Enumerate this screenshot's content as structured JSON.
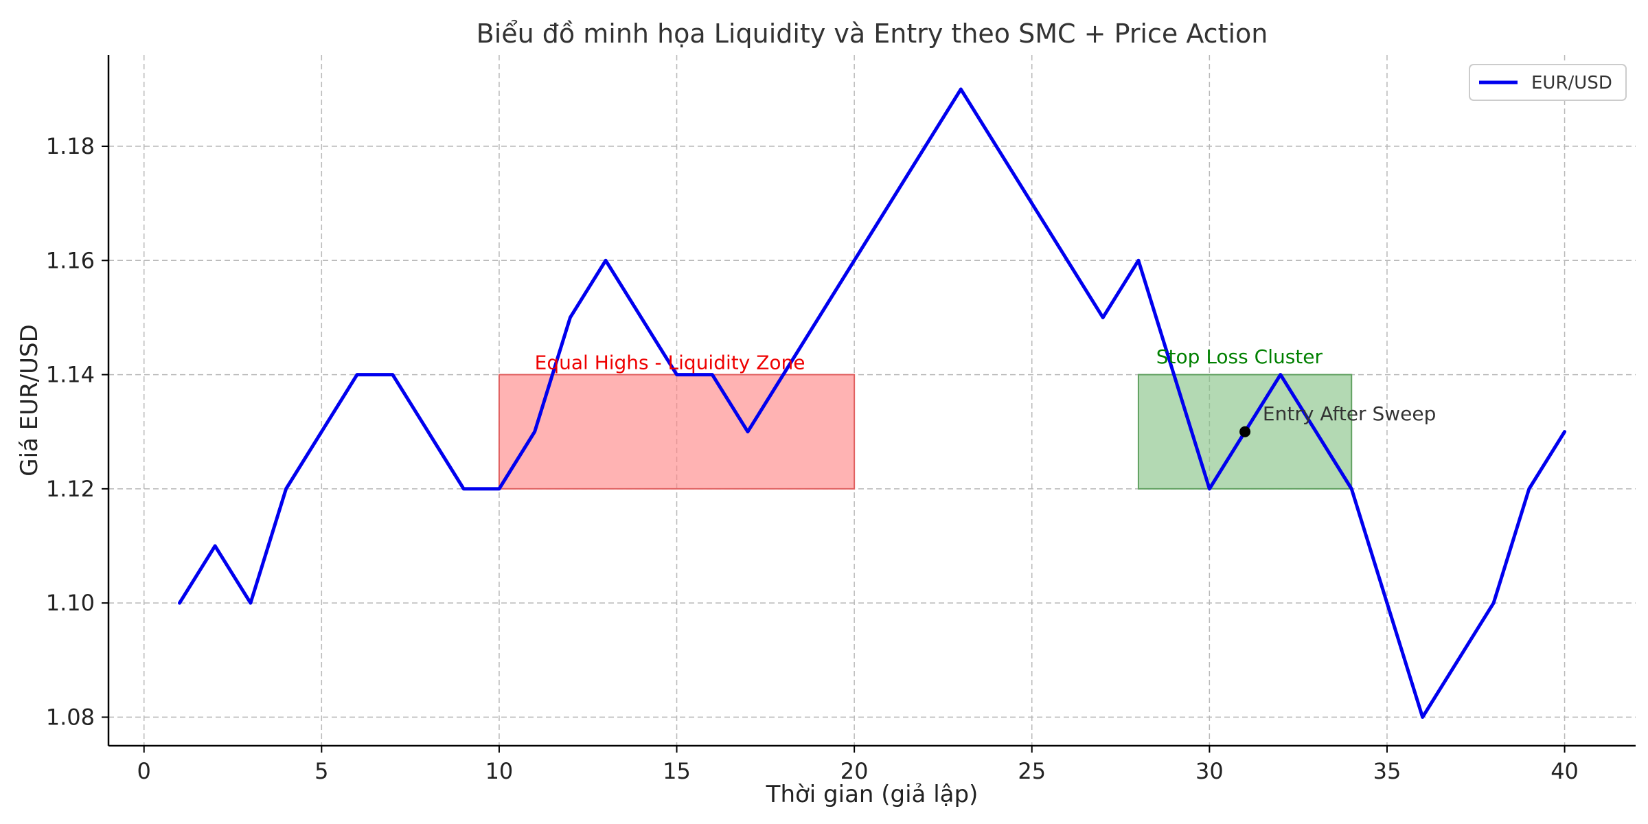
{
  "chart_data": {
    "type": "line",
    "title": "Biểu đồ minh họa Liquidity và Entry theo SMC + Price Action",
    "xlabel": "Thời gian (giả lập)",
    "ylabel": "Giá EUR/USD",
    "xlim": [
      -1,
      42
    ],
    "ylim": [
      1.075,
      1.196
    ],
    "xticks": [
      0,
      5,
      10,
      15,
      20,
      25,
      30,
      35,
      40
    ],
    "yticks": [
      1.08,
      1.1,
      1.12,
      1.14,
      1.16,
      1.18
    ],
    "xtick_labels": [
      "0",
      "5",
      "10",
      "15",
      "20",
      "25",
      "30",
      "35",
      "40"
    ],
    "ytick_labels": [
      "1.08",
      "1.10",
      "1.12",
      "1.14",
      "1.16",
      "1.18"
    ],
    "grid": true,
    "legend": {
      "position": "top-right",
      "entries": [
        "EUR/USD"
      ]
    },
    "series": [
      {
        "name": "EUR/USD",
        "color": "#0000ee",
        "x": [
          1,
          2,
          3,
          4,
          5,
          6,
          7,
          8,
          9,
          10,
          11,
          12,
          13,
          14,
          15,
          16,
          17,
          18,
          19,
          20,
          21,
          22,
          23,
          24,
          25,
          26,
          27,
          28,
          29,
          30,
          31,
          32,
          33,
          34,
          35,
          36,
          37,
          38,
          39,
          40
        ],
        "values": [
          1.1,
          1.11,
          1.1,
          1.12,
          1.13,
          1.14,
          1.14,
          1.13,
          1.12,
          1.12,
          1.13,
          1.15,
          1.16,
          1.15,
          1.14,
          1.14,
          1.13,
          1.14,
          1.15,
          1.16,
          1.17,
          1.18,
          1.19,
          1.18,
          1.17,
          1.16,
          1.15,
          1.16,
          1.14,
          1.12,
          1.13,
          1.14,
          1.13,
          1.12,
          1.1,
          1.08,
          1.09,
          1.1,
          1.12,
          1.13
        ]
      }
    ],
    "zones": [
      {
        "label": "Equal Highs - Liquidity Zone",
        "x_range": [
          10,
          20
        ],
        "y_range": [
          1.12,
          1.14
        ],
        "fill": "#ff8080",
        "edge": "#e06060",
        "text_color": "#ee0000",
        "label_x": 11,
        "label_y": 1.141
      },
      {
        "label": "Stop Loss Cluster",
        "x_range": [
          28,
          34
        ],
        "y_range": [
          1.12,
          1.14
        ],
        "fill": "#80c080",
        "edge": "#60a060",
        "text_color": "#008000",
        "label_x": 28.5,
        "label_y": 1.142
      }
    ],
    "points": [
      {
        "label": "Entry After Sweep",
        "x": 31,
        "y": 1.13,
        "color": "#000000",
        "label_x": 31.5,
        "label_y": 1.132
      }
    ]
  }
}
